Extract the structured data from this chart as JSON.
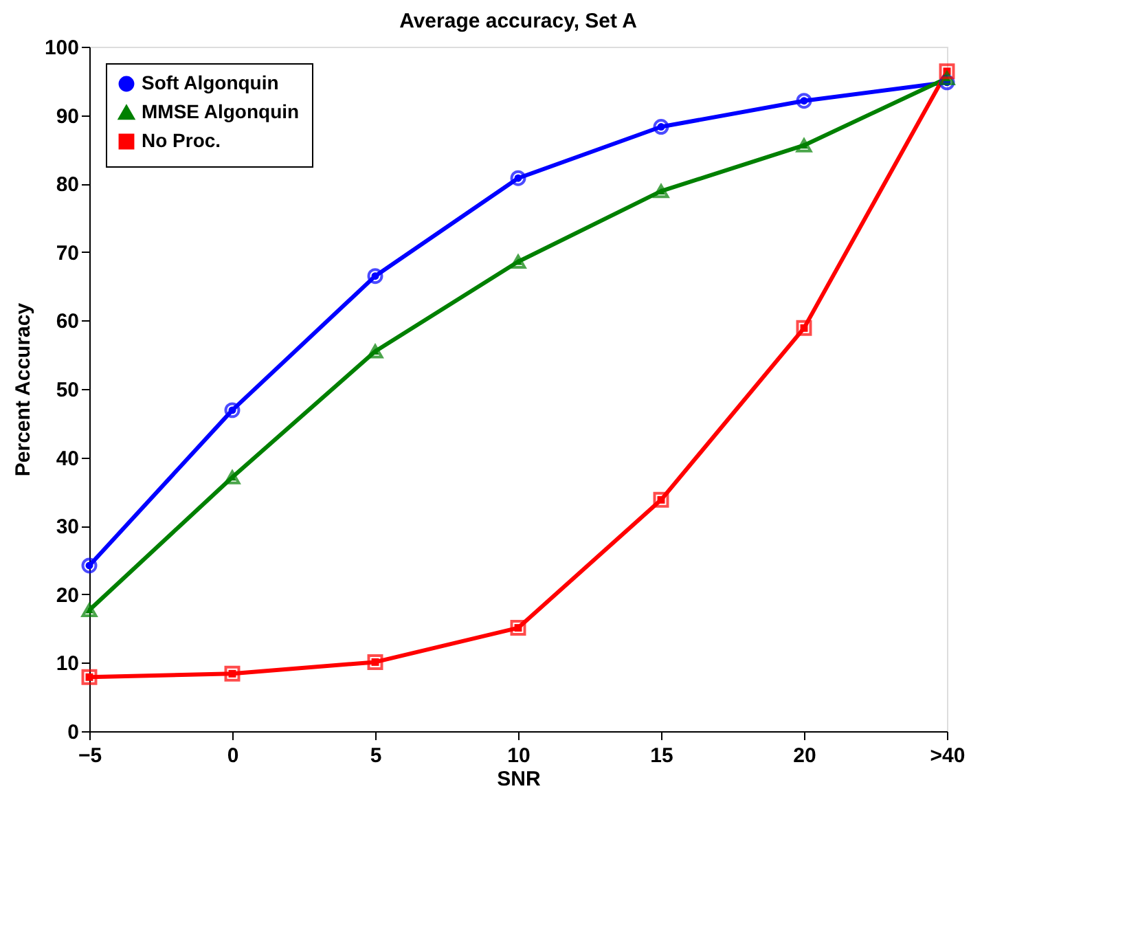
{
  "chart_data": {
    "type": "line",
    "title": "Average accuracy, Set A",
    "xlabel": "SNR",
    "ylabel": "Percent Accuracy",
    "categories": [
      "−5",
      "0",
      "5",
      "10",
      "15",
      "20",
      ">40"
    ],
    "series": [
      {
        "name": "Soft Algonquin",
        "color": "#0000ff",
        "marker": "circle",
        "values": [
          24.2,
          46.9,
          66.5,
          80.8,
          88.3,
          92.1,
          94.8
        ]
      },
      {
        "name": "MMSE Algonquin",
        "color": "#008000",
        "marker": "triangle",
        "values": [
          17.7,
          37.1,
          55.5,
          68.6,
          78.9,
          85.6,
          95.4
        ]
      },
      {
        "name": "No Proc.",
        "color": "#ff0000",
        "marker": "square",
        "values": [
          7.9,
          8.4,
          10.1,
          15.1,
          33.8,
          58.9,
          96.4
        ]
      }
    ],
    "ylim": [
      0,
      100
    ],
    "yticks": [
      0,
      10,
      20,
      30,
      40,
      50,
      60,
      70,
      80,
      90,
      100
    ],
    "grid": false,
    "legend": "top left",
    "line_style": "solid"
  }
}
